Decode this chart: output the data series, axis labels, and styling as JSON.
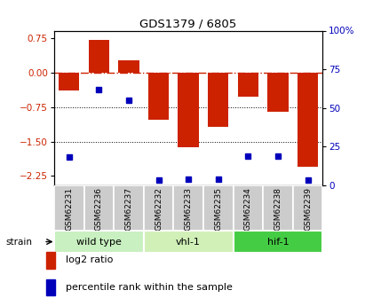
{
  "title": "GDS1379 / 6805",
  "samples": [
    "GSM62231",
    "GSM62236",
    "GSM62237",
    "GSM62232",
    "GSM62233",
    "GSM62235",
    "GSM62234",
    "GSM62238",
    "GSM62239"
  ],
  "log2_ratios": [
    -0.38,
    0.72,
    0.28,
    -1.02,
    -1.62,
    -1.18,
    -0.52,
    -0.85,
    -2.05
  ],
  "percentile_ranks": [
    18,
    62,
    55,
    3,
    4,
    4,
    19,
    19,
    3
  ],
  "groups": [
    {
      "label": "wild type",
      "indices": [
        0,
        1,
        2
      ],
      "color": "#c8f0c0"
    },
    {
      "label": "vhl-1",
      "indices": [
        3,
        4,
        5
      ],
      "color": "#d0f0b8"
    },
    {
      "label": "hif-1",
      "indices": [
        6,
        7,
        8
      ],
      "color": "#44cc44"
    }
  ],
  "bar_color": "#cc2200",
  "dot_color": "#0000bb",
  "ylim_left": [
    -2.45,
    0.92
  ],
  "ylim_right": [
    0,
    100
  ],
  "yticks_left": [
    0.75,
    0,
    -0.75,
    -1.5,
    -2.25
  ],
  "yticks_right": [
    100,
    75,
    50,
    25,
    0
  ],
  "hline_zero_color": "#cc2200",
  "hline_dotted_vals": [
    -0.75,
    -1.5
  ],
  "bg_color": "#ffffff",
  "group_bg_color": "#cccccc",
  "legend_bar_label": "log2 ratio",
  "legend_dot_label": "percentile rank within the sample"
}
